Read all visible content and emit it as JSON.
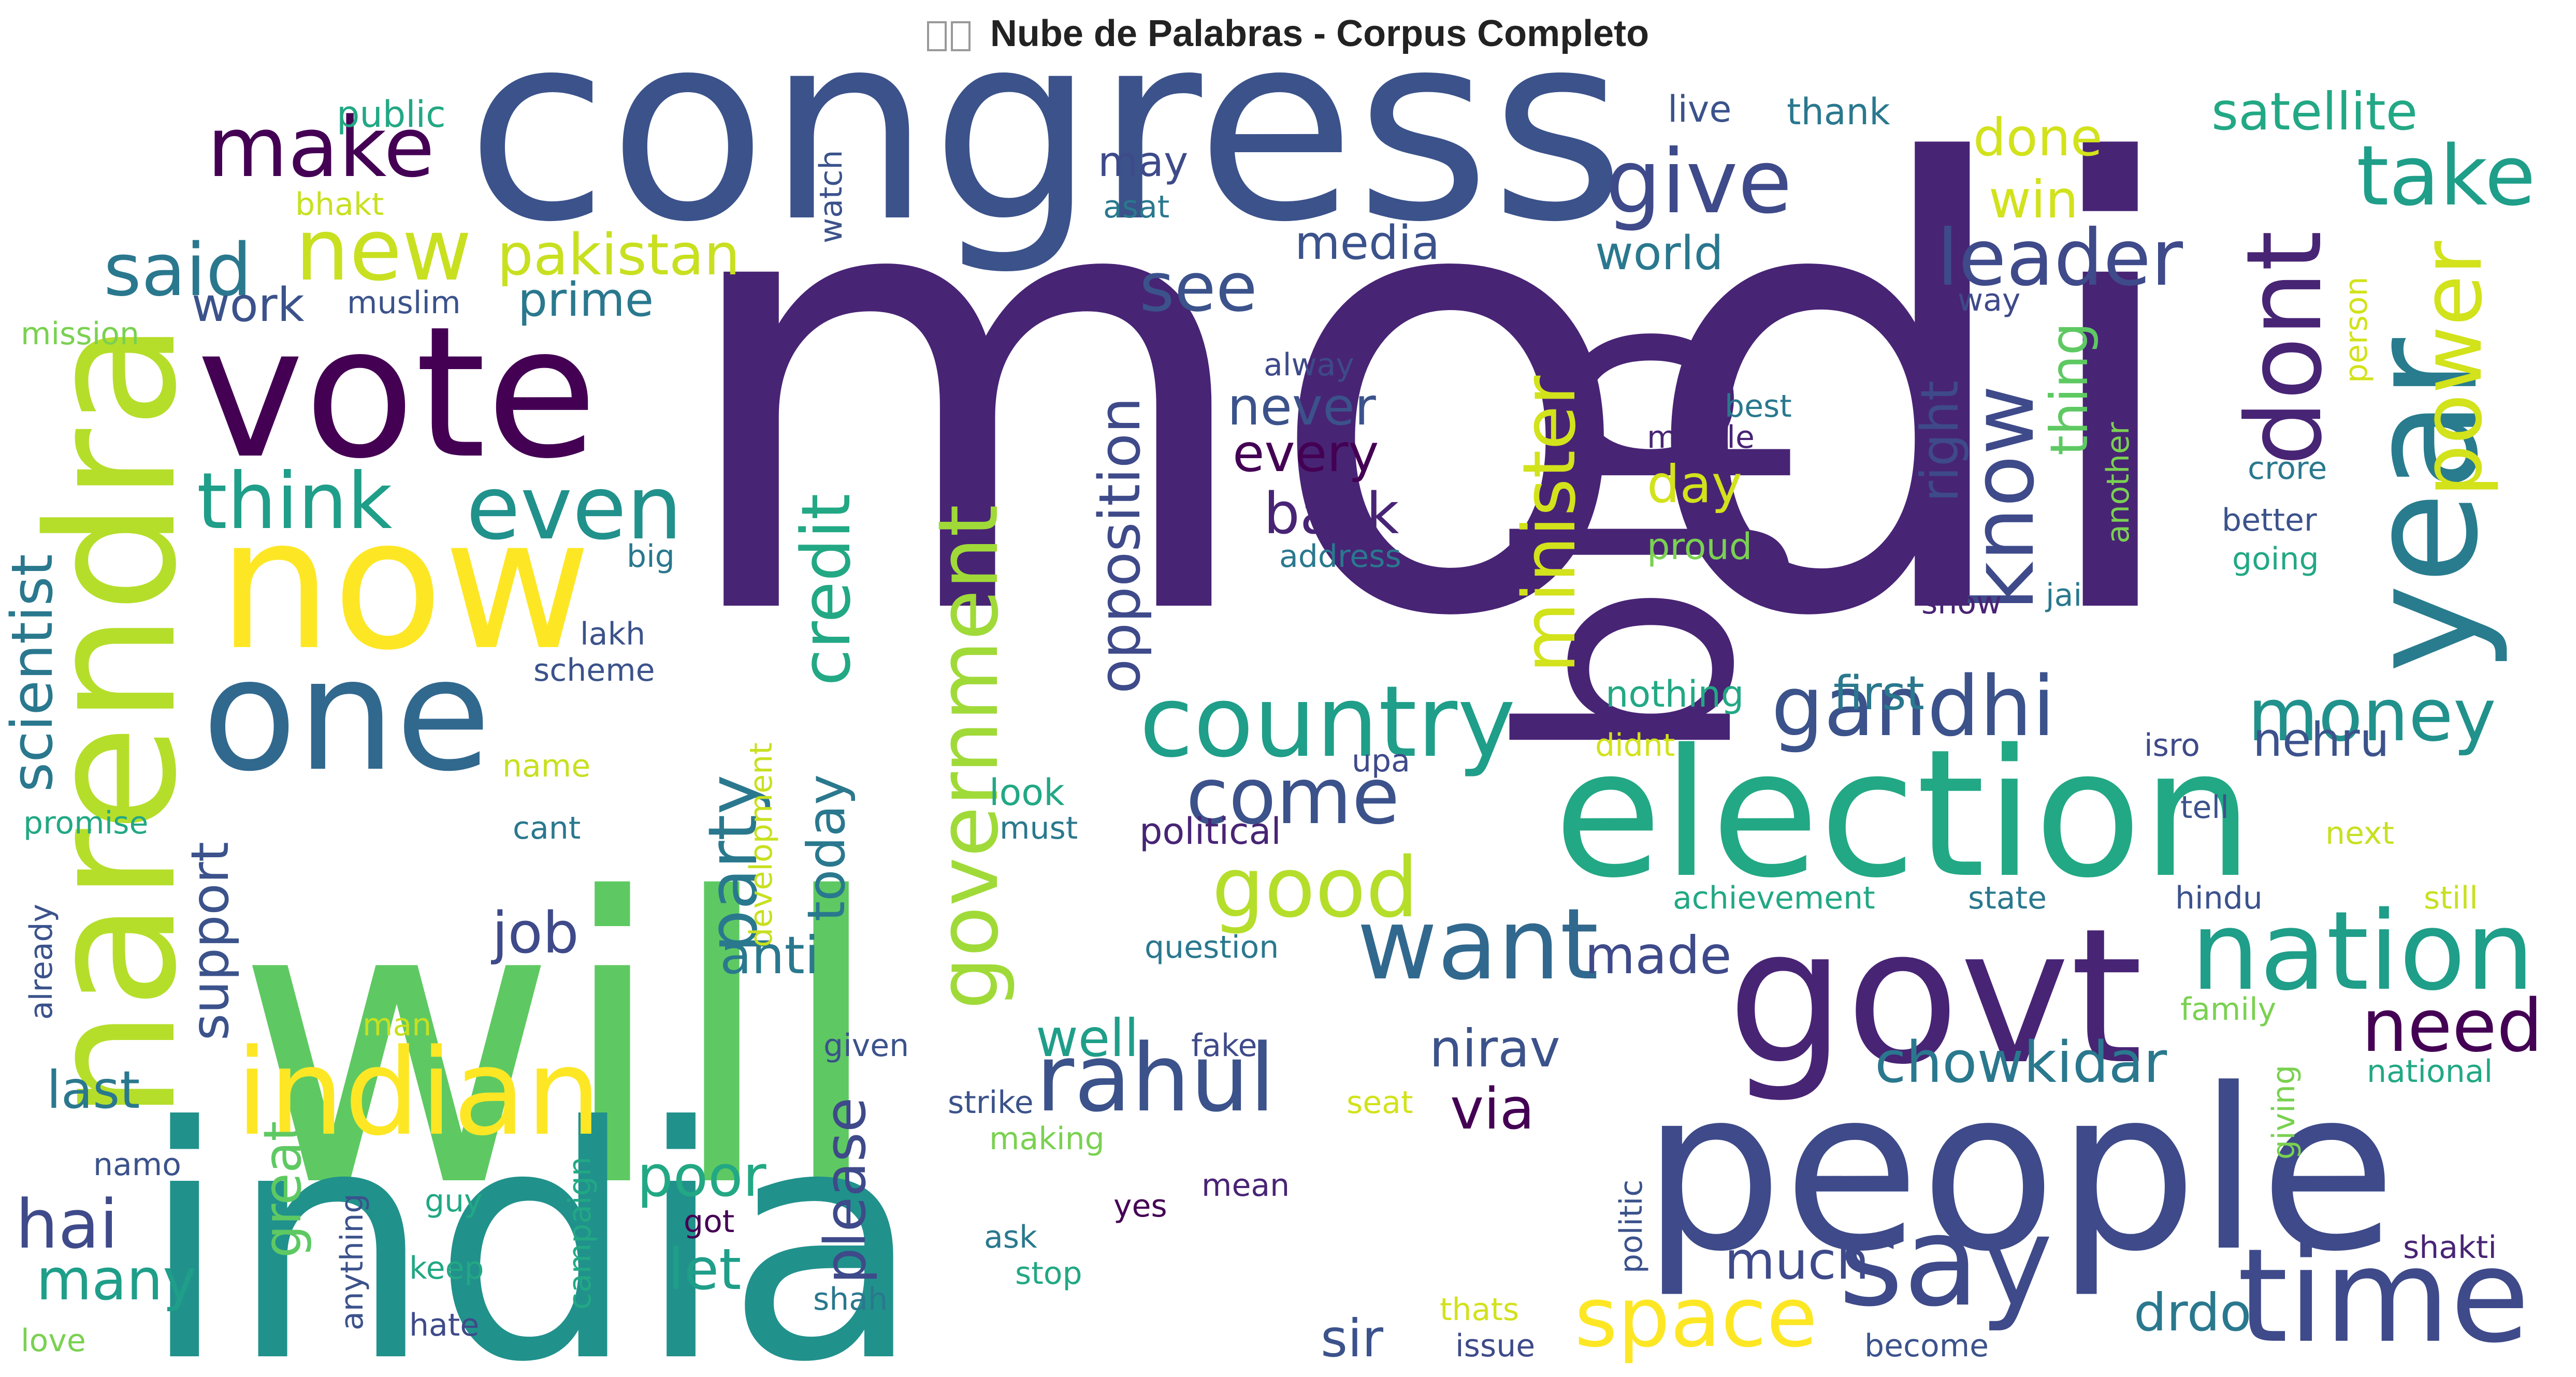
{
  "title": "Nube de Palabras - Corpus Completo",
  "title_icon": "image-icon",
  "words": [
    {
      "text": "modi",
      "color": "#482475"
    },
    {
      "text": "will",
      "color": "#5ec962"
    },
    {
      "text": "india",
      "color": "#21918c"
    },
    {
      "text": "congress",
      "color": "#3b528b"
    },
    {
      "text": "bjp",
      "color": "#482475"
    },
    {
      "text": "people",
      "color": "#3e4a89"
    },
    {
      "text": "election",
      "color": "#22a884"
    },
    {
      "text": "narendra",
      "color": "#b5de2b"
    },
    {
      "text": "vote",
      "color": "#440154"
    },
    {
      "text": "now",
      "color": "#fde725"
    },
    {
      "text": "one",
      "color": "#31688e"
    },
    {
      "text": "govt",
      "color": "#482475"
    },
    {
      "text": "year",
      "color": "#287c8e"
    },
    {
      "text": "indian",
      "color": "#fde725"
    },
    {
      "text": "time",
      "color": "#3e4a89"
    },
    {
      "text": "nation",
      "color": "#1f9e89"
    },
    {
      "text": "country",
      "color": "#1f9e89"
    },
    {
      "text": "rahul",
      "color": "#3b528b"
    },
    {
      "text": "say",
      "color": "#3e4a89"
    },
    {
      "text": "want",
      "color": "#31688e"
    },
    {
      "text": "gandhi",
      "color": "#3b528b"
    },
    {
      "text": "government",
      "color": "#a0da39"
    },
    {
      "text": "even",
      "color": "#21918c"
    },
    {
      "text": "think",
      "color": "#1f9e89"
    },
    {
      "text": "give",
      "color": "#3e4a89"
    },
    {
      "text": "make",
      "color": "#440154"
    },
    {
      "text": "new",
      "color": "#c8e020"
    },
    {
      "text": "said",
      "color": "#2a788e"
    },
    {
      "text": "space",
      "color": "#fde725"
    },
    {
      "text": "good",
      "color": "#b5de2b"
    },
    {
      "text": "money",
      "color": "#21918c"
    },
    {
      "text": "need",
      "color": "#440154"
    },
    {
      "text": "know",
      "color": "#3e4a89"
    },
    {
      "text": "dont",
      "color": "#482475"
    },
    {
      "text": "take",
      "color": "#1f9e89"
    },
    {
      "text": "power",
      "color": "#d2e21b"
    },
    {
      "text": "leader",
      "color": "#3e4a89"
    },
    {
      "text": "come",
      "color": "#3b528b"
    },
    {
      "text": "minister",
      "color": "#d2e21b"
    },
    {
      "text": "credit",
      "color": "#22a884"
    },
    {
      "text": "party",
      "color": "#2a788e"
    },
    {
      "text": "opposition",
      "color": "#3e4a89"
    },
    {
      "text": "see",
      "color": "#3b528b"
    },
    {
      "text": "pakistan",
      "color": "#c8e020"
    },
    {
      "text": "satellite",
      "color": "#22a884"
    },
    {
      "text": "chowkidar",
      "color": "#2a788e"
    },
    {
      "text": "hai",
      "color": "#3e4a89"
    },
    {
      "text": "many",
      "color": "#1f9e89"
    },
    {
      "text": "last",
      "color": "#2a788e"
    },
    {
      "text": "scientist",
      "color": "#2a788e"
    },
    {
      "text": "support",
      "color": "#3b528b"
    },
    {
      "text": "job",
      "color": "#3e4a89"
    },
    {
      "text": "anti",
      "color": "#2a788e"
    },
    {
      "text": "today",
      "color": "#2a788e"
    },
    {
      "text": "please",
      "color": "#3e4a89"
    },
    {
      "text": "great",
      "color": "#5ec962"
    },
    {
      "text": "let",
      "color": "#1f9e89"
    },
    {
      "text": "poor",
      "color": "#22a884"
    },
    {
      "text": "well",
      "color": "#1f9e89"
    },
    {
      "text": "via",
      "color": "#440154"
    },
    {
      "text": "nirav",
      "color": "#3b528b"
    },
    {
      "text": "made",
      "color": "#3e4a89"
    },
    {
      "text": "back",
      "color": "#482475"
    },
    {
      "text": "every",
      "color": "#440154"
    },
    {
      "text": "never",
      "color": "#3b528b"
    },
    {
      "text": "media",
      "color": "#3b528b"
    },
    {
      "text": "world",
      "color": "#2a788e"
    },
    {
      "text": "day",
      "color": "#d2e21b"
    },
    {
      "text": "right",
      "color": "#3e4a89"
    },
    {
      "text": "thing",
      "color": "#5ec962"
    },
    {
      "text": "first",
      "color": "#2a788e"
    },
    {
      "text": "nehru",
      "color": "#3b528b"
    },
    {
      "text": "drdo",
      "color": "#2a788e"
    },
    {
      "text": "sir",
      "color": "#3b528b"
    },
    {
      "text": "much",
      "color": "#3e4a89"
    },
    {
      "text": "work",
      "color": "#3b528b"
    },
    {
      "text": "prime",
      "color": "#2a788e"
    },
    {
      "text": "done",
      "color": "#d2e21b"
    },
    {
      "text": "win",
      "color": "#d2e21b"
    },
    {
      "text": "may",
      "color": "#3e4a89"
    },
    {
      "text": "public",
      "color": "#22a884"
    },
    {
      "text": "bhakt",
      "color": "#c8e020"
    },
    {
      "text": "muslim",
      "color": "#3b528b"
    },
    {
      "text": "mission",
      "color": "#7ad151"
    },
    {
      "text": "watch",
      "color": "#3b528b"
    },
    {
      "text": "asat",
      "color": "#2a788e"
    },
    {
      "text": "live",
      "color": "#3b528b"
    },
    {
      "text": "thank",
      "color": "#2a788e"
    },
    {
      "text": "way",
      "color": "#3e4a89"
    },
    {
      "text": "person",
      "color": "#d2e21b"
    },
    {
      "text": "alway",
      "color": "#3e4a89"
    },
    {
      "text": "missile",
      "color": "#482475"
    },
    {
      "text": "best",
      "color": "#2a788e"
    },
    {
      "text": "another",
      "color": "#7ad151"
    },
    {
      "text": "crore",
      "color": "#2a788e"
    },
    {
      "text": "better",
      "color": "#3b528b"
    },
    {
      "text": "going",
      "color": "#22a884"
    },
    {
      "text": "address",
      "color": "#2a788e"
    },
    {
      "text": "proud",
      "color": "#7ad151"
    },
    {
      "text": "show",
      "color": "#482475"
    },
    {
      "text": "jai",
      "color": "#2a788e"
    },
    {
      "text": "lakh",
      "color": "#3b528b"
    },
    {
      "text": "big",
      "color": "#2a788e"
    },
    {
      "text": "scheme",
      "color": "#3b528b"
    },
    {
      "text": "nothing",
      "color": "#22a884"
    },
    {
      "text": "didnt",
      "color": "#d2e21b"
    },
    {
      "text": "isro",
      "color": "#3e4a89"
    },
    {
      "text": "upa",
      "color": "#3e4a89"
    },
    {
      "text": "development",
      "color": "#c8e020"
    },
    {
      "text": "look",
      "color": "#22a884"
    },
    {
      "text": "must",
      "color": "#2a788e"
    },
    {
      "text": "name",
      "color": "#c8e020"
    },
    {
      "text": "cant",
      "color": "#2a788e"
    },
    {
      "text": "political",
      "color": "#482475"
    },
    {
      "text": "next",
      "color": "#c8e020"
    },
    {
      "text": "tell",
      "color": "#3b528b"
    },
    {
      "text": "promise",
      "color": "#22a884"
    },
    {
      "text": "already",
      "color": "#3b528b"
    },
    {
      "text": "achievement",
      "color": "#22a884"
    },
    {
      "text": "state",
      "color": "#2a788e"
    },
    {
      "text": "hindu",
      "color": "#3b528b"
    },
    {
      "text": "still",
      "color": "#c8e020"
    },
    {
      "text": "question",
      "color": "#2a788e"
    },
    {
      "text": "family",
      "color": "#7ad151"
    },
    {
      "text": "man",
      "color": "#c8e020"
    },
    {
      "text": "given",
      "color": "#3b528b"
    },
    {
      "text": "fake",
      "color": "#3e4a89"
    },
    {
      "text": "national",
      "color": "#22a884"
    },
    {
      "text": "strike",
      "color": "#3b528b"
    },
    {
      "text": "seat",
      "color": "#d2e21b"
    },
    {
      "text": "giving",
      "color": "#7ad151"
    },
    {
      "text": "making",
      "color": "#7ad151"
    },
    {
      "text": "politic",
      "color": "#3b528b"
    },
    {
      "text": "namo",
      "color": "#3b528b"
    },
    {
      "text": "guy",
      "color": "#22a884"
    },
    {
      "text": "anything",
      "color": "#3b528b"
    },
    {
      "text": "campaign",
      "color": "#22a884"
    },
    {
      "text": "got",
      "color": "#440154"
    },
    {
      "text": "mean",
      "color": "#482475"
    },
    {
      "text": "yes",
      "color": "#440154"
    },
    {
      "text": "ask",
      "color": "#2a788e"
    },
    {
      "text": "stop",
      "color": "#22a884"
    },
    {
      "text": "keep",
      "color": "#22a884"
    },
    {
      "text": "hate",
      "color": "#3e4a89"
    },
    {
      "text": "love",
      "color": "#7ad151"
    },
    {
      "text": "shah",
      "color": "#2a788e"
    },
    {
      "text": "thats",
      "color": "#d2e21b"
    },
    {
      "text": "issue",
      "color": "#3e4a89"
    },
    {
      "text": "become",
      "color": "#3b528b"
    },
    {
      "text": "shakti",
      "color": "#482475"
    }
  ]
}
